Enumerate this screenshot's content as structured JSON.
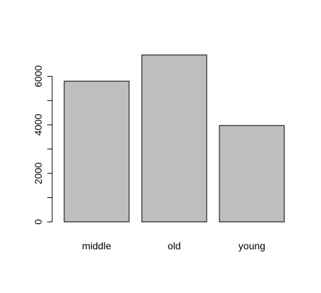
{
  "chart_data": {
    "type": "bar",
    "title": "",
    "xlabel": "",
    "ylabel": "",
    "categories": [
      "middle",
      "old",
      "young"
    ],
    "values": [
      5800,
      6880,
      3970
    ],
    "ylim": [
      0,
      6880
    ],
    "yticks": [
      0,
      1000,
      2000,
      3000,
      4000,
      5000,
      6000
    ],
    "ytick_labels": [
      "0",
      "2000",
      "4000",
      "6000"
    ],
    "ytick_labeled_values": [
      0,
      2000,
      4000,
      6000
    ],
    "bar_color": "#bebebe",
    "grid": false,
    "legend": "none"
  }
}
